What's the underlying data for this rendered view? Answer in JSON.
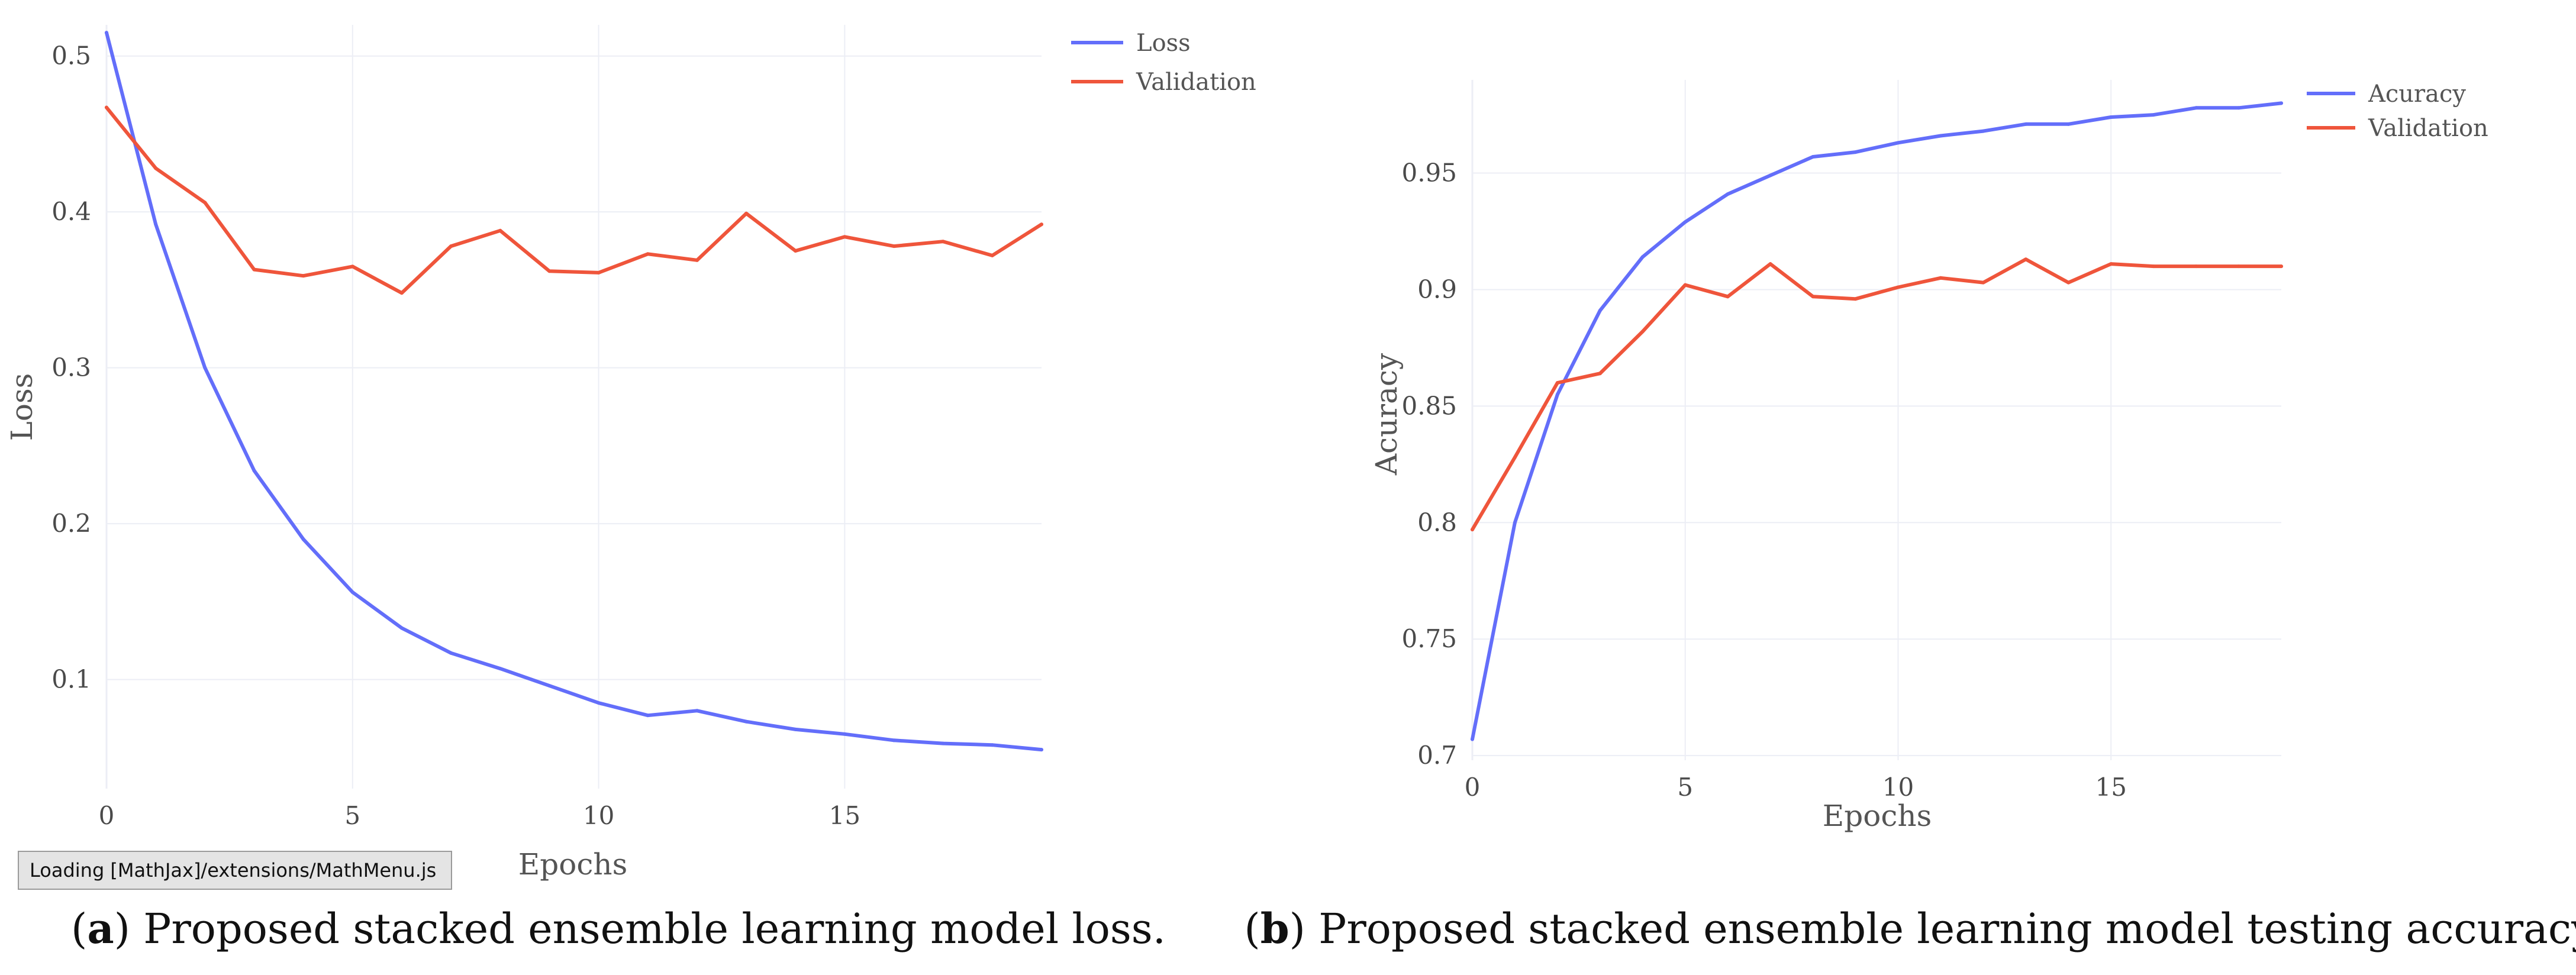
{
  "colors": {
    "series_a": "#636efa",
    "series_b": "#ef553b",
    "grid": "#eceef5"
  },
  "status_bar": {
    "text": "Loading [MathJax]/extensions/MathMenu.js"
  },
  "captions": {
    "a": {
      "label": "a",
      "text": ") Proposed stacked ensemble learning model loss."
    },
    "b": {
      "label": "b",
      "text": ") Proposed stacked ensemble learning model testing accuracy."
    }
  },
  "chart_data": [
    {
      "id": "a",
      "type": "line",
      "xlabel": "Epochs",
      "ylabel": "Loss",
      "xlim": [
        0,
        19
      ],
      "ylim": [
        0.03,
        0.52
      ],
      "xticks": [
        0,
        5,
        10,
        15
      ],
      "xtick_labels": [
        "0",
        "5",
        "10",
        "15"
      ],
      "yticks": [
        0.1,
        0.2,
        0.3,
        0.4,
        0.5
      ],
      "ytick_labels": [
        "0.1",
        "0.2",
        "0.3",
        "0.4",
        "0.5"
      ],
      "legend_position": "top-right",
      "x": [
        0,
        1,
        2,
        3,
        4,
        5,
        6,
        7,
        8,
        9,
        10,
        11,
        12,
        13,
        14,
        15,
        16,
        17,
        18,
        19
      ],
      "series": [
        {
          "name": "Loss",
          "color_key": "series_a",
          "values": [
            0.515,
            0.392,
            0.3,
            0.234,
            0.19,
            0.156,
            0.133,
            0.117,
            0.107,
            0.096,
            0.085,
            0.077,
            0.08,
            0.073,
            0.068,
            0.065,
            0.061,
            0.059,
            0.058,
            0.055
          ]
        },
        {
          "name": "Validation",
          "color_key": "series_b",
          "values": [
            0.467,
            0.428,
            0.406,
            0.363,
            0.359,
            0.365,
            0.348,
            0.378,
            0.388,
            0.362,
            0.361,
            0.373,
            0.369,
            0.399,
            0.375,
            0.384,
            0.378,
            0.381,
            0.372,
            0.392
          ]
        }
      ]
    },
    {
      "id": "b",
      "type": "line",
      "xlabel": "Epochs",
      "ylabel": "Acuracy",
      "xlim": [
        0,
        19
      ],
      "ylim": [
        0.698,
        0.99
      ],
      "xticks": [
        0,
        5,
        10,
        15
      ],
      "xtick_labels": [
        "0",
        "5",
        "10",
        "15"
      ],
      "yticks": [
        0.7,
        0.75,
        0.8,
        0.85,
        0.9,
        0.95
      ],
      "ytick_labels": [
        "0.7",
        "0.75",
        "0.8",
        "0.85",
        "0.9",
        "0.95"
      ],
      "legend_position": "top-right",
      "x": [
        0,
        1,
        2,
        3,
        4,
        5,
        6,
        7,
        8,
        9,
        10,
        11,
        12,
        13,
        14,
        15,
        16,
        17,
        18,
        19
      ],
      "series": [
        {
          "name": "Acuracy",
          "color_key": "series_a",
          "values": [
            0.707,
            0.8,
            0.855,
            0.891,
            0.914,
            0.929,
            0.941,
            0.949,
            0.957,
            0.959,
            0.963,
            0.966,
            0.968,
            0.971,
            0.971,
            0.974,
            0.975,
            0.978,
            0.978,
            0.98
          ]
        },
        {
          "name": "Validation",
          "color_key": "series_b",
          "values": [
            0.797,
            0.828,
            0.86,
            0.864,
            0.882,
            0.902,
            0.897,
            0.911,
            0.897,
            0.896,
            0.901,
            0.905,
            0.903,
            0.913,
            0.903,
            0.911,
            0.91,
            0.91,
            0.91,
            0.91
          ]
        }
      ]
    }
  ]
}
